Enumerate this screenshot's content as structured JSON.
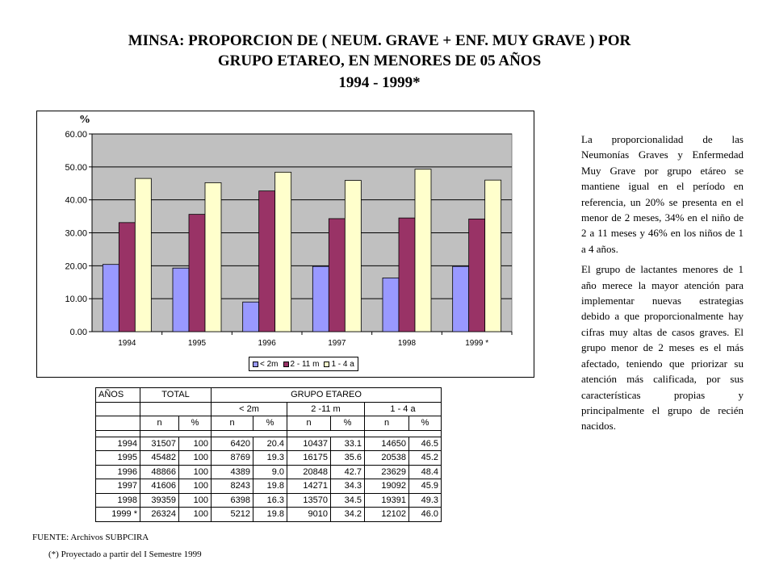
{
  "title": {
    "line1": "MINSA:  PROPORCION DE ( NEUM. GRAVE  + ENF. MUY GRAVE ) POR",
    "line2": "GRUPO ETAREO, EN MENORES DE 05 AÑOS",
    "line3": "1994 - 1999*"
  },
  "colors": {
    "plot_bg": "#c0c0c0",
    "series": [
      "#9999ff",
      "#993366",
      "#ffffcc"
    ]
  },
  "chart_data": {
    "type": "bar",
    "ylabel": "%",
    "ylim": [
      0,
      60
    ],
    "yticks": [
      "0.00",
      "10.00",
      "20.00",
      "30.00",
      "40.00",
      "50.00",
      "60.00"
    ],
    "categories": [
      "1994",
      "1995",
      "1996",
      "1997",
      "1998",
      "1999 *"
    ],
    "series": [
      {
        "name": "< 2m",
        "values": [
          20.4,
          19.3,
          9.0,
          19.8,
          16.3,
          19.8
        ]
      },
      {
        "name": "2 - 11 m",
        "values": [
          33.1,
          35.6,
          42.7,
          34.3,
          34.5,
          34.2
        ]
      },
      {
        "name": "1 - 4 a",
        "values": [
          46.5,
          45.2,
          48.4,
          45.9,
          49.3,
          46.0
        ]
      }
    ],
    "legend_position": "bottom",
    "grid": true
  },
  "table": {
    "h_anos": "AÑOS",
    "h_total": "TOTAL",
    "h_grupo": "GRUPO ETAREO",
    "h_lt2m": "< 2m",
    "h_2_11m": "2 -11 m",
    "h_1_4a": "1 - 4 a",
    "h_n": "n",
    "h_pct": "%",
    "rows": [
      [
        "1994",
        "31507",
        "100",
        "6420",
        "20.4",
        "10437",
        "33.1",
        "14650",
        "46.5"
      ],
      [
        "1995",
        "45482",
        "100",
        "8769",
        "19.3",
        "16175",
        "35.6",
        "20538",
        "45.2"
      ],
      [
        "1996",
        "48866",
        "100",
        "4389",
        "9.0",
        "20848",
        "42.7",
        "23629",
        "48.4"
      ],
      [
        "1997",
        "41606",
        "100",
        "8243",
        "19.8",
        "14271",
        "34.3",
        "19092",
        "45.9"
      ],
      [
        "1998",
        "39359",
        "100",
        "6398",
        "16.3",
        "13570",
        "34.5",
        "19391",
        "49.3"
      ],
      [
        "1999 *",
        "26324",
        "100",
        "5212",
        "19.8",
        "9010",
        "34.2",
        "12102",
        "46.0"
      ]
    ]
  },
  "side_text": {
    "p1": "La proporcionalidad de las Neumonías Graves y Enfermedad Muy Grave por grupo etáreo se mantiene igual en el período en referencia, un 20% se presenta en el menor de 2 meses, 34% en el niño de 2 a 11 meses y 46% en los niños de 1 a 4 años.",
    "p2": "El grupo de lactantes menores de 1 año merece la mayor atención para implementar nuevas estrategias debido a que proporcionalmente hay cifras muy altas de casos graves. El grupo menor de 2 meses es el más afectado, teniendo que priorizar su atención más calificada, por sus características propias y principalmente el grupo de recién nacidos."
  },
  "footer": {
    "source": "FUENTE: Archivos SUBPCIRA",
    "note": "(*) Proyectado a partir del I Semestre 1999"
  }
}
